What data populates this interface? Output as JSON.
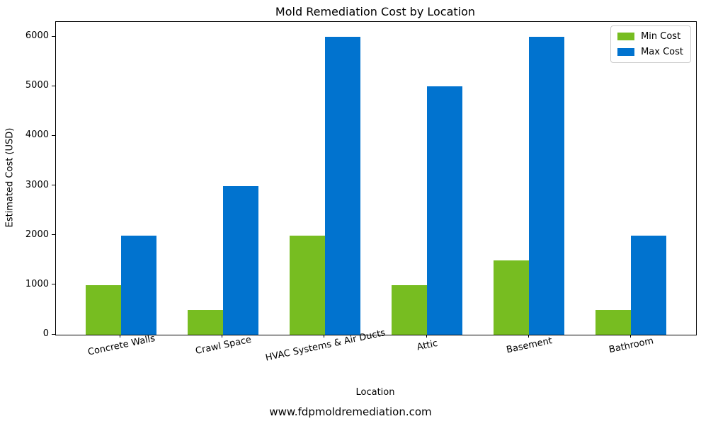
{
  "chart_data": {
    "type": "bar",
    "title": "Mold Remediation Cost by Location",
    "xlabel": "Location",
    "ylabel": "Estimated Cost (USD)",
    "footer": "www.fdpmoldremediation.com",
    "categories": [
      "Concrete Walls",
      "Crawl Space",
      "HVAC Systems & Air Ducts",
      "Attic",
      "Basement",
      "Bathroom"
    ],
    "series": [
      {
        "name": "Min Cost",
        "color": "#77BD21",
        "values": [
          1000,
          500,
          2000,
          1000,
          1500,
          500
        ]
      },
      {
        "name": "Max Cost",
        "color": "#0173CF",
        "values": [
          2000,
          3000,
          6000,
          5000,
          6000,
          2000
        ]
      }
    ],
    "ylim": [
      0,
      6300
    ],
    "yticks": [
      0,
      1000,
      2000,
      3000,
      4000,
      5000,
      6000
    ],
    "legend_position": "upper right",
    "grid": false,
    "xtick_rotation": 12,
    "axis_color": "#000000",
    "background_color": "#ffffff"
  }
}
